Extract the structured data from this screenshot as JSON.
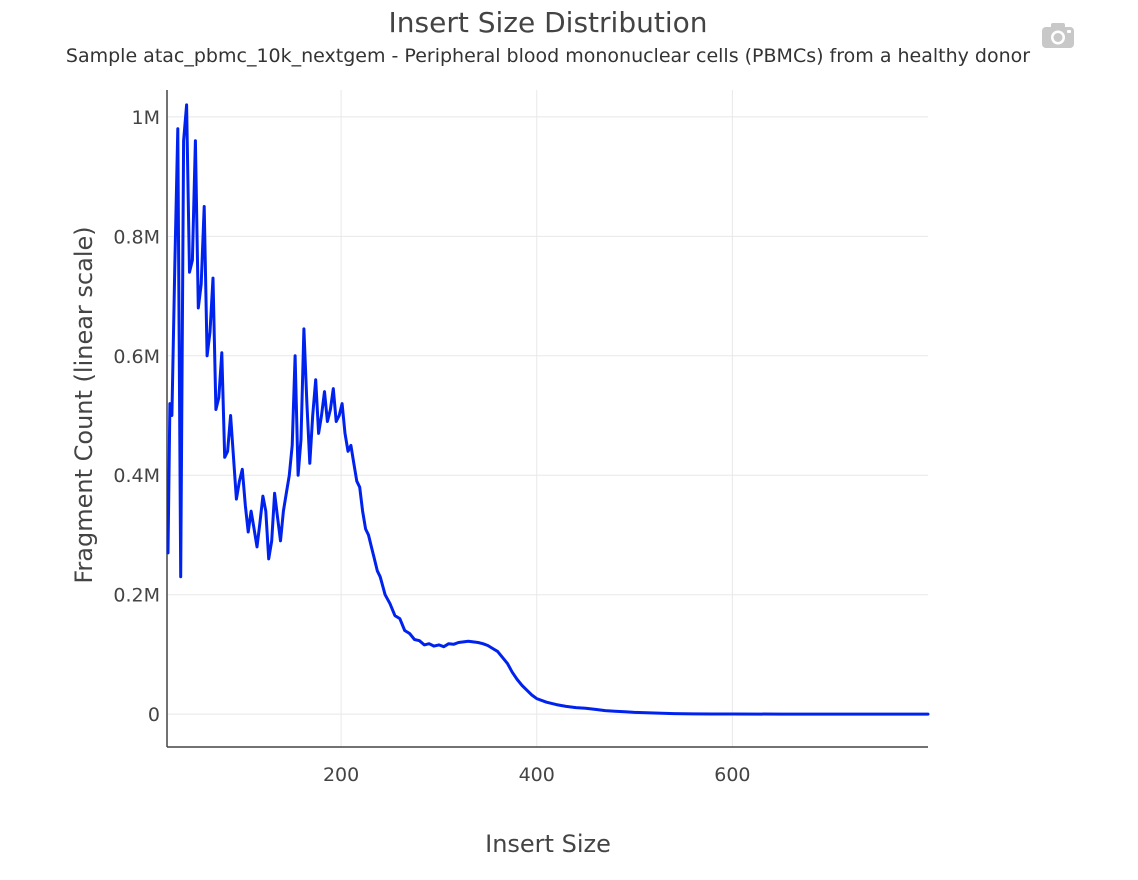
{
  "chart_data": {
    "type": "line",
    "title": "Insert Size Distribution",
    "subtitle": "Sample atac_pbmc_10k_nextgem - Peripheral blood mononuclear cells (PBMCs) from a healthy donor",
    "xlabel": "Insert Size",
    "ylabel": "Fragment Count (linear scale)",
    "xlim": [
      22,
      800
    ],
    "ylim": [
      -55000,
      1045000
    ],
    "xticks": [
      {
        "value": 200,
        "label": "200"
      },
      {
        "value": 400,
        "label": "400"
      },
      {
        "value": 600,
        "label": "600"
      }
    ],
    "yticks": [
      {
        "value": 0,
        "label": "0"
      },
      {
        "value": 200000,
        "label": "0.2M"
      },
      {
        "value": 400000,
        "label": "0.4M"
      },
      {
        "value": 600000,
        "label": "0.6M"
      },
      {
        "value": 800000,
        "label": "0.8M"
      },
      {
        "value": 1000000,
        "label": "1M"
      }
    ],
    "grid": true,
    "series": [
      {
        "name": "atac_pbmc_10k_nextgem",
        "color": "#0022ee",
        "x": [
          23,
          25,
          27,
          30,
          33,
          36,
          39,
          42,
          45,
          48,
          51,
          54,
          57,
          60,
          63,
          66,
          69,
          72,
          75,
          78,
          81,
          84,
          87,
          90,
          93,
          96,
          99,
          102,
          105,
          108,
          111,
          114,
          117,
          120,
          123,
          126,
          129,
          132,
          135,
          138,
          141,
          144,
          147,
          150,
          153,
          156,
          159,
          162,
          165,
          168,
          171,
          174,
          177,
          180,
          183,
          186,
          189,
          192,
          195,
          198,
          201,
          204,
          207,
          210,
          213,
          216,
          219,
          222,
          225,
          228,
          231,
          234,
          237,
          240,
          245,
          250,
          255,
          260,
          265,
          270,
          275,
          280,
          285,
          290,
          295,
          300,
          305,
          310,
          315,
          320,
          325,
          330,
          335,
          340,
          345,
          350,
          355,
          360,
          365,
          370,
          375,
          380,
          385,
          390,
          395,
          400,
          410,
          420,
          430,
          440,
          450,
          460,
          470,
          480,
          490,
          500,
          520,
          540,
          560,
          580,
          600,
          650,
          700,
          750,
          800
        ],
        "values": [
          270000,
          520000,
          500000,
          750000,
          980000,
          230000,
          960000,
          1020000,
          740000,
          760000,
          960000,
          680000,
          720000,
          850000,
          600000,
          640000,
          730000,
          510000,
          530000,
          605000,
          430000,
          440000,
          500000,
          430000,
          360000,
          390000,
          410000,
          350000,
          305000,
          340000,
          310000,
          280000,
          320000,
          365000,
          340000,
          260000,
          290000,
          370000,
          330000,
          290000,
          340000,
          370000,
          400000,
          450000,
          600000,
          400000,
          460000,
          645000,
          520000,
          420000,
          500000,
          560000,
          470000,
          500000,
          540000,
          490000,
          510000,
          545000,
          490000,
          500000,
          520000,
          470000,
          440000,
          450000,
          420000,
          390000,
          380000,
          340000,
          310000,
          300000,
          280000,
          260000,
          240000,
          230000,
          200000,
          185000,
          165000,
          160000,
          140000,
          135000,
          125000,
          123000,
          116000,
          118000,
          114000,
          116000,
          113000,
          118000,
          117000,
          120000,
          121000,
          122000,
          121000,
          120000,
          118000,
          115000,
          110000,
          105000,
          95000,
          85000,
          70000,
          58000,
          48000,
          40000,
          32000,
          26000,
          20000,
          16000,
          13000,
          11000,
          10000,
          8000,
          6000,
          5000,
          4000,
          3000,
          2000,
          1000,
          500,
          300,
          200,
          100,
          50,
          20,
          10
        ]
      }
    ]
  },
  "ui": {
    "camera_icon": "camera-icon"
  }
}
